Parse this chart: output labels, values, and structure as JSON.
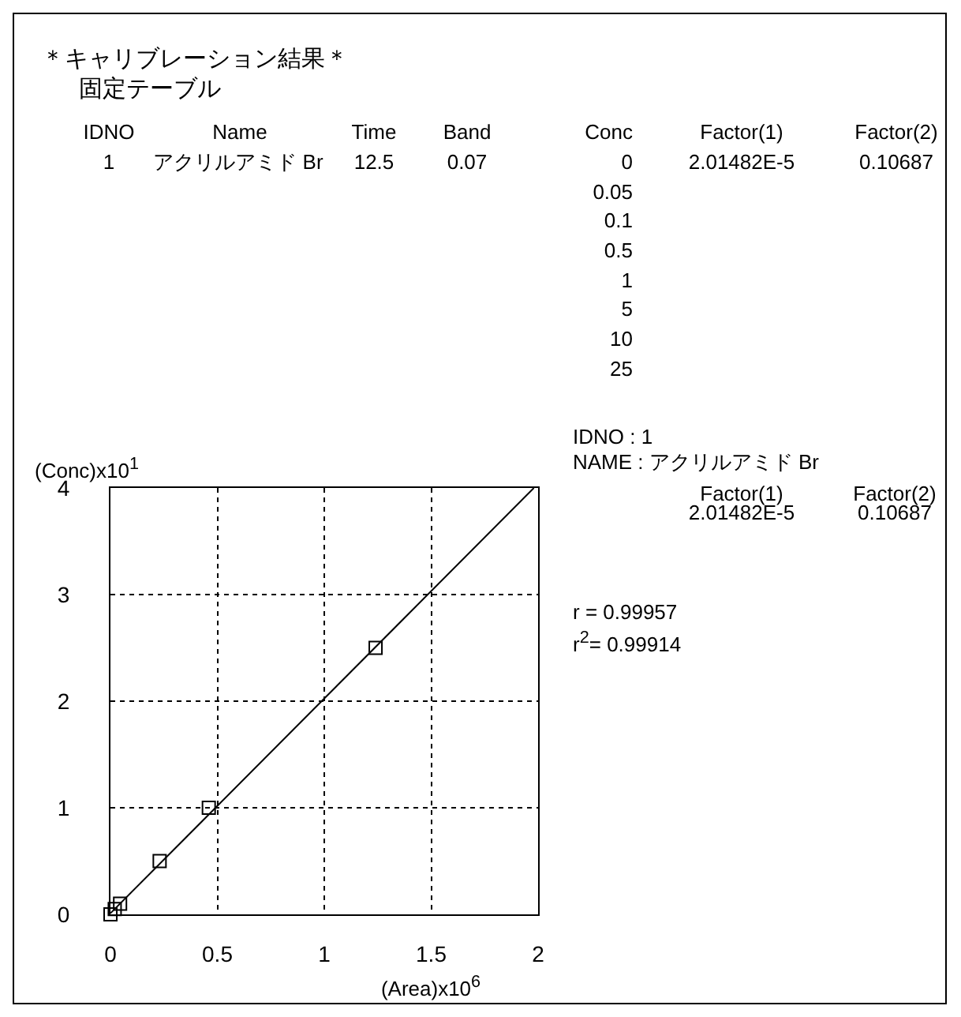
{
  "chart_data": {
    "type": "scatter",
    "title": "＊キャリブレーション結果＊",
    "subtitle": "固定テーブル",
    "xlabel": "(Area)x10$^{6}$",
    "ylabel": "(Conc)x10$^{1}$",
    "series": [
      {
        "color": "#000000",
        "marker": "square",
        "x": [
          0,
          0.02,
          0.045,
          0.23,
          0.46,
          1.24
        ],
        "values": [
          0,
          0.05,
          0.1,
          0.5,
          1,
          2.5
        ]
      },
      {
        "type": "line",
        "color": "#000000",
        "marker": "none",
        "x": [
          0,
          1.98
        ],
        "values": [
          0.01,
          4
        ]
      }
    ],
    "xlim": [
      0,
      2
    ],
    "ylim": [
      0,
      4
    ],
    "xticks": [
      0,
      0.5,
      1,
      1.5,
      2
    ],
    "yticks": [
      0,
      1,
      2,
      3,
      4
    ],
    "grid": true,
    "annotations": [
      "IDNO",
      "Name",
      "Time",
      "Band",
      "Conc",
      "Factor(1)",
      "Factor(2)",
      "1",
      "アクリルアミド Br",
      "12.5",
      "0.07",
      "0",
      "0.05",
      "0.1",
      "0.5",
      "1",
      "5",
      "10",
      "25",
      "2.01482E-5",
      "0.10687",
      "IDNO : 1",
      "NAME : アクリルアミド Br",
      "Factor(1)",
      "Factor(2)",
      "2.01482E-5",
      "0.10687",
      "r = 0.99957",
      "r$^{2}$= 0.99914"
    ]
  }
}
